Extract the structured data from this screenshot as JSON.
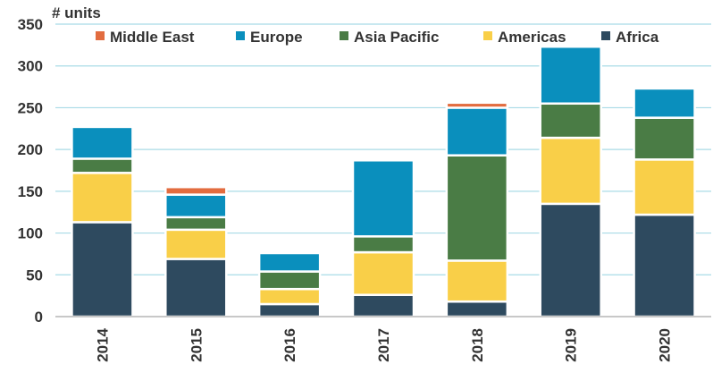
{
  "chart_data": {
    "type": "bar",
    "stacked": true,
    "ylabel": "# units",
    "ylim": [
      0,
      350
    ],
    "yticks": [
      0,
      50,
      100,
      150,
      200,
      250,
      300,
      350
    ],
    "grid": true,
    "legend_position": "top",
    "categories": [
      "2014",
      "2015",
      "2016",
      "2017",
      "2018",
      "2019",
      "2020"
    ],
    "series": [
      {
        "name": "Africa",
        "color": "#2e4a5f",
        "values": [
          113,
          69,
          15,
          26,
          18,
          135,
          122
        ]
      },
      {
        "name": "Americas",
        "color": "#f9cf48",
        "values": [
          59,
          35,
          18,
          51,
          49,
          79,
          66
        ]
      },
      {
        "name": "Asia Pacific",
        "color": "#4a7c45",
        "values": [
          17,
          15,
          21,
          19,
          126,
          41,
          50
        ]
      },
      {
        "name": "Europe",
        "color": "#0a8fbd",
        "values": [
          38,
          27,
          22,
          91,
          57,
          68,
          35
        ]
      },
      {
        "name": "Middle East",
        "color": "#e26c3f",
        "values": [
          0,
          9,
          0,
          0,
          6,
          0,
          0
        ]
      }
    ],
    "legend_order": [
      "Middle East",
      "Europe",
      "Asia Pacific",
      "Americas",
      "Africa"
    ]
  }
}
